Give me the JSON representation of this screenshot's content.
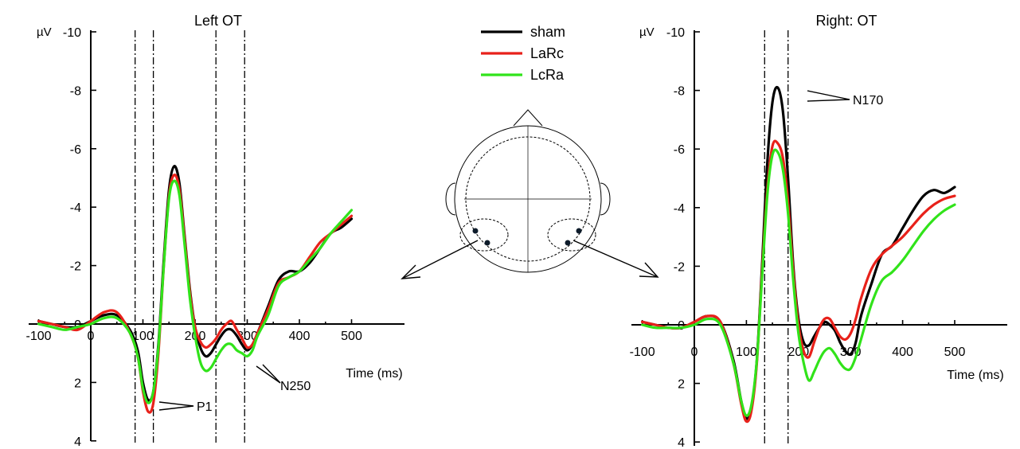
{
  "figure": {
    "y_unit_label": "µV",
    "x_axis_title": "Time (ms)"
  },
  "legend": {
    "items": [
      {
        "label": "sham",
        "color": "#000000"
      },
      {
        "label": "LaRc",
        "color": "#e8211a"
      },
      {
        "label": "LcRa",
        "color": "#31e31a"
      }
    ]
  },
  "chart_data": [
    {
      "type": "line",
      "title": "Left OT",
      "xlabel": "Time (ms)",
      "ylabel": "µV",
      "xlim": [
        -100,
        500
      ],
      "ylim": [
        4,
        -10
      ],
      "y_inverted": true,
      "x_ticks": [
        -100,
        0,
        100,
        200,
        300,
        400,
        500
      ],
      "y_ticks": [
        4,
        2,
        0,
        -2,
        -4,
        -6,
        -8,
        -10
      ],
      "window_markers_ms": [
        85,
        120,
        240,
        295
      ],
      "annotations": [
        {
          "text": "P1",
          "target_ms": 105,
          "target_uv": 2.9
        },
        {
          "text": "N250",
          "target_ms": 285,
          "target_uv": 1.1
        }
      ],
      "x": [
        -100,
        -75,
        -50,
        -25,
        0,
        25,
        50,
        75,
        90,
        100,
        110,
        120,
        130,
        140,
        150,
        160,
        170,
        180,
        190,
        200,
        210,
        220,
        230,
        240,
        250,
        260,
        270,
        280,
        290,
        300,
        310,
        320,
        340,
        360,
        380,
        400,
        420,
        440,
        460,
        480,
        500
      ],
      "series": [
        {
          "name": "sham",
          "color": "#000000",
          "values": [
            -0.1,
            0.0,
            0.1,
            0.1,
            -0.1,
            -0.3,
            -0.3,
            0.2,
            0.9,
            2.0,
            2.6,
            2.3,
            0.6,
            -2.2,
            -4.6,
            -5.4,
            -4.8,
            -3.0,
            -1.2,
            0.1,
            0.8,
            1.1,
            1.0,
            0.7,
            0.4,
            0.2,
            0.2,
            0.4,
            0.7,
            0.9,
            0.7,
            0.3,
            -0.6,
            -1.5,
            -1.8,
            -1.8,
            -2.1,
            -2.6,
            -3.1,
            -3.3,
            -3.6
          ]
        },
        {
          "name": "LaRc",
          "color": "#e8211a",
          "values": [
            -0.1,
            0.0,
            0.1,
            0.2,
            -0.1,
            -0.4,
            -0.4,
            0.3,
            1.1,
            2.3,
            3.0,
            2.7,
            0.9,
            -2.0,
            -4.4,
            -5.1,
            -4.6,
            -2.9,
            -1.1,
            0.1,
            0.6,
            0.8,
            0.7,
            0.5,
            0.2,
            0.0,
            -0.1,
            0.2,
            0.5,
            0.8,
            0.7,
            0.3,
            -0.5,
            -1.4,
            -1.6,
            -1.8,
            -2.3,
            -2.8,
            -3.1,
            -3.4,
            -3.7
          ]
        },
        {
          "name": "LcRa",
          "color": "#31e31a",
          "values": [
            0.0,
            0.1,
            0.2,
            0.1,
            0.0,
            -0.2,
            -0.2,
            0.3,
            1.1,
            2.2,
            2.7,
            2.3,
            0.7,
            -2.0,
            -4.3,
            -4.9,
            -4.4,
            -2.7,
            -0.9,
            0.4,
            1.3,
            1.6,
            1.5,
            1.2,
            0.9,
            0.7,
            0.7,
            0.9,
            1.0,
            1.1,
            0.9,
            0.4,
            -0.3,
            -1.3,
            -1.6,
            -1.8,
            -2.2,
            -2.6,
            -3.1,
            -3.5,
            -3.9
          ]
        }
      ]
    },
    {
      "type": "line",
      "title": "Right: OT",
      "xlabel": "Time (ms)",
      "ylabel": "µV",
      "xlim": [
        -100,
        500
      ],
      "ylim": [
        4,
        -10
      ],
      "y_inverted": true,
      "x_ticks": [
        -100,
        0,
        100,
        200,
        300,
        400,
        500
      ],
      "y_ticks": [
        4,
        2,
        0,
        -2,
        -4,
        -6,
        -8,
        -10
      ],
      "window_markers_ms": [
        135,
        180
      ],
      "annotations": [
        {
          "text": "N170",
          "target_ms": 160,
          "target_uv": -7.8
        }
      ],
      "x": [
        -100,
        -75,
        -50,
        -25,
        0,
        25,
        50,
        75,
        90,
        100,
        110,
        120,
        130,
        140,
        150,
        160,
        170,
        180,
        190,
        200,
        210,
        220,
        230,
        240,
        250,
        260,
        270,
        280,
        290,
        300,
        310,
        320,
        340,
        360,
        380,
        400,
        420,
        440,
        460,
        480,
        500
      ],
      "series": [
        {
          "name": "sham",
          "color": "#000000",
          "values": [
            -0.1,
            0.0,
            0.1,
            0.1,
            -0.1,
            -0.3,
            -0.1,
            1.2,
            2.6,
            3.2,
            2.8,
            1.2,
            -2.0,
            -5.5,
            -7.6,
            -8.1,
            -7.3,
            -5.0,
            -2.0,
            -0.2,
            0.6,
            0.7,
            0.4,
            0.1,
            -0.1,
            0.0,
            0.2,
            0.6,
            0.9,
            1.0,
            0.6,
            -0.3,
            -1.4,
            -2.4,
            -2.7,
            -3.3,
            -3.9,
            -4.4,
            -4.6,
            -4.5,
            -4.7
          ]
        },
        {
          "name": "LaRc",
          "color": "#e8211a",
          "values": [
            -0.1,
            0.0,
            0.1,
            0.1,
            -0.1,
            -0.3,
            -0.1,
            1.3,
            2.7,
            3.3,
            2.9,
            1.3,
            -1.8,
            -4.6,
            -6.1,
            -6.2,
            -5.7,
            -4.2,
            -1.8,
            0.0,
            0.9,
            1.1,
            0.6,
            0.1,
            -0.2,
            -0.2,
            0.1,
            0.4,
            0.5,
            0.3,
            -0.2,
            -0.9,
            -1.9,
            -2.4,
            -2.7,
            -3.0,
            -3.4,
            -3.8,
            -4.1,
            -4.3,
            -4.4
          ]
        },
        {
          "name": "LcRa",
          "color": "#31e31a",
          "values": [
            0.0,
            0.1,
            0.1,
            0.1,
            0.0,
            -0.2,
            0.0,
            1.3,
            2.6,
            3.1,
            2.7,
            1.2,
            -1.6,
            -4.4,
            -5.8,
            -5.9,
            -5.3,
            -3.8,
            -1.5,
            0.3,
            1.3,
            1.9,
            1.6,
            1.2,
            0.9,
            0.8,
            1.0,
            1.3,
            1.5,
            1.5,
            1.1,
            0.5,
            -0.7,
            -1.5,
            -1.8,
            -2.2,
            -2.7,
            -3.2,
            -3.6,
            -3.9,
            -4.1
          ]
        }
      ]
    }
  ]
}
